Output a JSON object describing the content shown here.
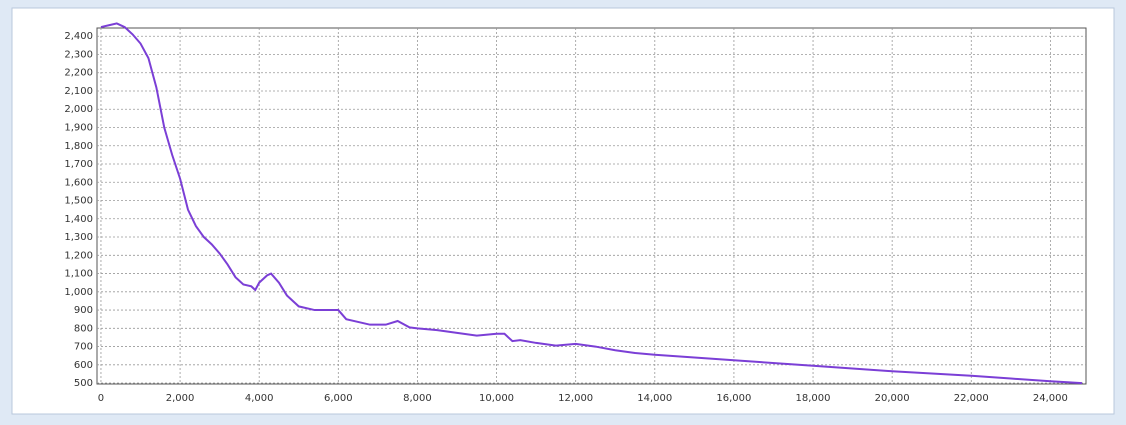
{
  "chart_data": {
    "type": "line",
    "x": [
      0,
      200,
      400,
      600,
      800,
      1000,
      1200,
      1400,
      1600,
      1800,
      2000,
      2200,
      2400,
      2600,
      2800,
      3000,
      3200,
      3400,
      3600,
      3800,
      3900,
      4000,
      4200,
      4300,
      4500,
      4700,
      5000,
      5400,
      6000,
      6200,
      6500,
      6800,
      7200,
      7500,
      7800,
      8000,
      8500,
      9000,
      9500,
      10000,
      10200,
      10400,
      10600,
      11000,
      11500,
      12000,
      12500,
      13000,
      13500,
      14000,
      16000,
      18000,
      20000,
      22000,
      23000,
      24000,
      24800
    ],
    "series": [
      {
        "color": "#7b3fd6",
        "values": [
          2450,
          2460,
          2470,
          2450,
          2410,
          2360,
          2280,
          2120,
          1900,
          1750,
          1620,
          1450,
          1360,
          1300,
          1260,
          1210,
          1150,
          1080,
          1040,
          1030,
          1010,
          1050,
          1090,
          1100,
          1050,
          980,
          920,
          900,
          900,
          850,
          835,
          820,
          820,
          840,
          805,
          800,
          790,
          775,
          760,
          770,
          770,
          730,
          735,
          720,
          705,
          715,
          700,
          680,
          665,
          655,
          625,
          595,
          565,
          540,
          525,
          510,
          500
        ]
      }
    ],
    "xlim": [
      -100,
      24900
    ],
    "ylim": [
      495,
      2445
    ],
    "xticks": [
      0,
      {
        "value": 2000,
        "label": "2,000"
      },
      {
        "value": 4000,
        "label": "4,000"
      },
      {
        "value": 6000,
        "label": "6,000"
      },
      {
        "value": 8000,
        "label": "8,000"
      },
      {
        "value": 10000,
        "label": "10,000"
      },
      {
        "value": 12000,
        "label": "12,000"
      },
      {
        "value": 14000,
        "label": "14,000"
      },
      {
        "value": 16000,
        "label": "16,000"
      },
      {
        "value": 18000,
        "label": "18,000"
      },
      {
        "value": 20000,
        "label": "20,000"
      },
      {
        "value": 22000,
        "label": "22,000"
      },
      {
        "value": 24000,
        "label": "24,000"
      }
    ],
    "yticks": [
      500,
      600,
      700,
      800,
      900,
      {
        "value": 1000,
        "label": "1,000"
      },
      {
        "value": 1100,
        "label": "1,100"
      },
      {
        "value": 1200,
        "label": "1,200"
      },
      {
        "value": 1300,
        "label": "1,300"
      },
      {
        "value": 1400,
        "label": "1,400"
      },
      {
        "value": 1500,
        "label": "1,500"
      },
      {
        "value": 1600,
        "label": "1,600"
      },
      {
        "value": 1700,
        "label": "1,700"
      },
      {
        "value": 1800,
        "label": "1,800"
      },
      {
        "value": 1900,
        "label": "1,900"
      },
      {
        "value": 2000,
        "label": "2,000"
      },
      {
        "value": 2100,
        "label": "2,100"
      },
      {
        "value": 2200,
        "label": "2,200"
      },
      {
        "value": 2300,
        "label": "2,300"
      },
      {
        "value": 2400,
        "label": "2,400"
      }
    ],
    "grid": true
  }
}
